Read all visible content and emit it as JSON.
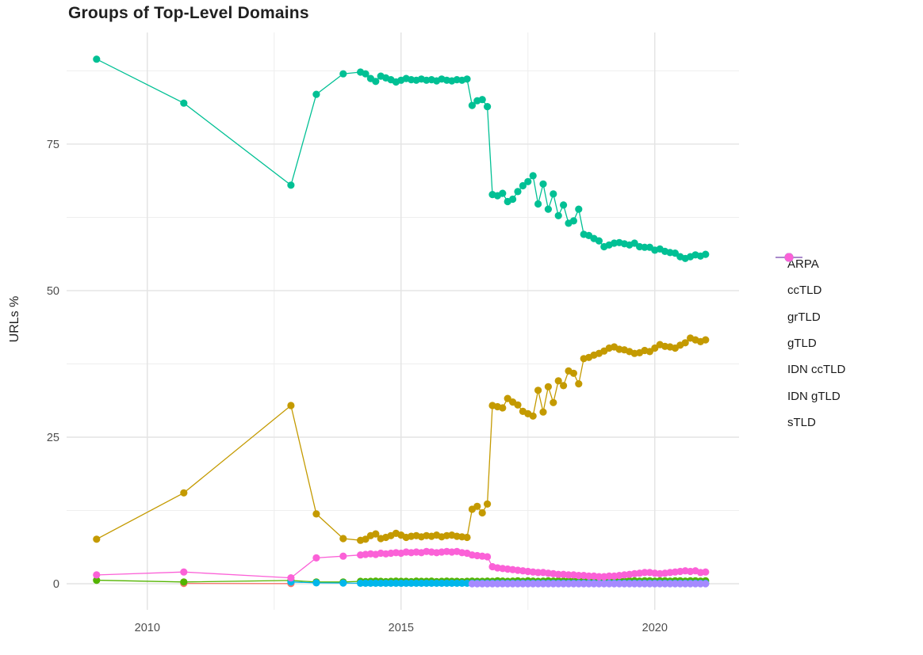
{
  "chart_data": {
    "type": "line",
    "markers": true,
    "title": "Groups of Top-Level Domains",
    "xlabel": "",
    "ylabel": "URLs %",
    "legend_position": "right",
    "grid": true,
    "xlim": [
      2008.41,
      2021.66
    ],
    "ylim": [
      -4.46,
      94.05
    ],
    "x_ticks": [
      {
        "v": 2010,
        "label": "2010"
      },
      {
        "v": 2015,
        "label": "2015"
      },
      {
        "v": 2020,
        "label": "2020"
      }
    ],
    "y_ticks": [
      {
        "v": 0,
        "label": "0"
      },
      {
        "v": 25,
        "label": "25"
      },
      {
        "v": 50,
        "label": "50"
      },
      {
        "v": 75,
        "label": "75"
      }
    ],
    "x_minor": [
      2012.5,
      2017.5
    ],
    "y_minor": [
      12.5,
      37.5,
      62.5,
      87.5
    ],
    "style": {
      "grid_major": "#e3e3e3",
      "grid_minor": "#eeeeee",
      "axis_text_color": "#4d4d4d",
      "text_color": "#1a1a1a",
      "background": "#ffffff"
    },
    "x_dense": [
      2014.2,
      2014.3,
      2014.4,
      2014.5,
      2014.6,
      2014.7,
      2014.8,
      2014.9,
      2015.0,
      2015.1,
      2015.2,
      2015.3,
      2015.4,
      2015.5,
      2015.6,
      2015.7,
      2015.8,
      2015.9,
      2016.0,
      2016.1,
      2016.2,
      2016.3,
      2016.4,
      2016.5,
      2016.6,
      2016.7,
      2016.8,
      2016.9,
      2017.0,
      2017.1,
      2017.2,
      2017.3,
      2017.4,
      2017.5,
      2017.6,
      2017.7,
      2017.8,
      2017.9,
      2018.0,
      2018.1,
      2018.2,
      2018.3,
      2018.4,
      2018.5,
      2018.6,
      2018.7,
      2018.8,
      2018.9,
      2019.0,
      2019.1,
      2019.2,
      2019.3,
      2019.4,
      2019.5,
      2019.6,
      2019.7,
      2019.8,
      2019.9,
      2020.0,
      2020.1,
      2020.2,
      2020.3,
      2020.4,
      2020.5,
      2020.6,
      2020.7,
      2020.8,
      2020.9,
      2021.0
    ],
    "series": [
      {
        "name": "ARPA",
        "color": "#F8766D",
        "early": [
          [
            2010.72,
            0.05
          ],
          [
            2012.83,
            0.02
          ]
        ],
        "dense": []
      },
      {
        "name": "ccTLD",
        "color": "#C49A00",
        "early": [
          [
            2009.0,
            7.6
          ],
          [
            2010.72,
            15.5
          ],
          [
            2012.83,
            30.4
          ],
          [
            2013.33,
            11.9
          ],
          [
            2013.86,
            7.7
          ]
        ],
        "dense": [
          7.4,
          7.6,
          8.2,
          8.5,
          7.7,
          7.9,
          8.2,
          8.6,
          8.3,
          7.9,
          8.1,
          8.2,
          8.0,
          8.2,
          8.1,
          8.3,
          8.0,
          8.2,
          8.3,
          8.1,
          8.0,
          7.9,
          12.7,
          13.2,
          12.1,
          13.6,
          30.4,
          30.2,
          30.0,
          31.6,
          31.0,
          30.5,
          29.4,
          29.0,
          28.6,
          33.0,
          29.3,
          33.6,
          30.9,
          34.6,
          33.8,
          36.3,
          35.9,
          34.1,
          38.4,
          38.6,
          39.0,
          39.3,
          39.7,
          40.2,
          40.4,
          40.0,
          39.9,
          39.6,
          39.3,
          39.4,
          39.8,
          39.6,
          40.2,
          40.8,
          40.5,
          40.4,
          40.2,
          40.7,
          41.1,
          41.9,
          41.6,
          41.3,
          41.6
        ]
      },
      {
        "name": "grTLD",
        "color": "#53B400",
        "early": [
          [
            2009.0,
            0.6
          ],
          [
            2010.72,
            0.3
          ],
          [
            2012.83,
            0.55
          ],
          [
            2013.33,
            0.3
          ],
          [
            2013.86,
            0.3
          ]
        ],
        "dense": [
          0.4,
          0.35,
          0.4,
          0.45,
          0.4,
          0.35,
          0.4,
          0.45,
          0.4,
          0.4,
          0.35,
          0.45,
          0.4,
          0.4,
          0.45,
          0.35,
          0.4,
          0.45,
          0.4,
          0.4,
          0.35,
          0.4,
          0.45,
          0.4,
          0.4,
          0.45,
          0.4,
          0.5,
          0.45,
          0.4,
          0.45,
          0.5,
          0.4,
          0.5,
          0.45,
          0.4,
          0.45,
          0.5,
          0.45,
          0.5,
          0.45,
          0.5,
          0.45,
          0.5,
          0.5,
          0.45,
          0.5,
          0.45,
          0.5,
          0.45,
          0.5,
          0.5,
          0.45,
          0.5,
          0.5,
          0.45,
          0.5,
          0.5,
          0.45,
          0.5,
          0.5,
          0.45,
          0.5,
          0.5,
          0.45,
          0.5,
          0.5,
          0.45,
          0.5
        ]
      },
      {
        "name": "gTLD",
        "color": "#00C094",
        "early": [
          [
            2009.0,
            89.5
          ],
          [
            2010.72,
            82.0
          ],
          [
            2012.83,
            68.0
          ],
          [
            2013.33,
            83.5
          ],
          [
            2013.86,
            87.0
          ]
        ],
        "dense": [
          87.3,
          87.0,
          86.2,
          85.7,
          86.6,
          86.3,
          86.0,
          85.6,
          85.9,
          86.2,
          86.0,
          85.9,
          86.1,
          85.9,
          86.0,
          85.8,
          86.1,
          85.9,
          85.8,
          86.0,
          85.9,
          86.1,
          81.6,
          82.4,
          82.6,
          81.4,
          66.4,
          66.2,
          66.6,
          65.2,
          65.6,
          66.9,
          67.9,
          68.6,
          69.6,
          64.8,
          68.2,
          63.9,
          66.5,
          62.8,
          64.6,
          61.5,
          61.9,
          63.9,
          59.6,
          59.4,
          58.9,
          58.5,
          57.5,
          57.8,
          58.1,
          58.2,
          58.0,
          57.8,
          58.1,
          57.5,
          57.4,
          57.4,
          56.9,
          57.1,
          56.7,
          56.5,
          56.4,
          55.8,
          55.5,
          55.8,
          56.1,
          55.9,
          56.2
        ]
      },
      {
        "name": "IDN ccTLD",
        "color": "#00B6EB",
        "early": [
          [
            2012.83,
            0.3
          ],
          [
            2013.33,
            0.15
          ],
          [
            2013.86,
            0.12
          ]
        ],
        "dense": [
          0.08,
          0.08,
          0.08,
          0.08,
          0.08,
          0.08,
          0.08,
          0.08,
          0.08,
          0.08,
          0.08,
          0.08,
          0.08,
          0.08,
          0.08,
          0.08,
          0.08,
          0.08,
          0.08,
          0.08,
          0.08,
          0.08,
          0.08,
          0.08,
          0.08,
          0.08,
          0.08,
          0.08,
          0.08,
          0.08,
          0.08,
          0.08,
          0.08,
          0.08,
          0.08,
          0.08,
          0.08,
          0.08,
          0.08,
          0.08,
          0.08,
          0.08,
          0.08,
          0.08,
          0.08,
          0.08,
          0.08,
          0.08,
          0.08,
          0.08,
          0.08,
          0.08,
          0.08,
          0.08,
          0.08,
          0.08,
          0.08,
          0.08,
          0.08,
          0.08,
          0.08,
          0.08,
          0.08,
          0.08,
          0.08,
          0.08,
          0.08,
          0.08,
          0.08
        ]
      },
      {
        "name": "IDN gTLD",
        "color": "#A58AFF",
        "early": [],
        "dense_from": 2016.4,
        "dense": [
          0.0,
          0.0,
          0.0,
          0.0,
          0.0,
          0.0,
          0.0,
          0.0,
          0.0,
          0.0,
          0.0,
          0.0,
          0.0,
          0.0,
          0.0,
          0.0,
          0.0,
          0.0,
          0.0,
          0.0,
          0.0,
          0.0,
          0.0,
          0.0,
          0.0,
          0.0,
          0.0,
          0.0,
          0.0,
          0.0,
          0.0,
          0.0,
          0.0,
          0.0,
          0.0,
          0.0,
          0.0,
          0.0,
          0.0,
          0.0,
          0.0,
          0.0,
          0.0,
          0.0,
          0.0,
          0.0,
          0.0
        ]
      },
      {
        "name": "sTLD",
        "color": "#FB61D7",
        "early": [
          [
            2009.0,
            1.5
          ],
          [
            2010.72,
            2.0
          ],
          [
            2012.83,
            1.0
          ],
          [
            2013.33,
            4.4
          ],
          [
            2013.86,
            4.7
          ]
        ],
        "dense": [
          4.9,
          5.0,
          5.1,
          5.0,
          5.2,
          5.1,
          5.2,
          5.3,
          5.2,
          5.4,
          5.3,
          5.4,
          5.3,
          5.5,
          5.4,
          5.3,
          5.4,
          5.5,
          5.4,
          5.5,
          5.3,
          5.2,
          4.9,
          4.8,
          4.7,
          4.6,
          2.9,
          2.7,
          2.6,
          2.5,
          2.4,
          2.3,
          2.2,
          2.1,
          2.0,
          1.9,
          1.9,
          1.8,
          1.7,
          1.6,
          1.6,
          1.5,
          1.5,
          1.4,
          1.4,
          1.3,
          1.3,
          1.2,
          1.2,
          1.3,
          1.3,
          1.4,
          1.5,
          1.6,
          1.7,
          1.8,
          1.9,
          1.9,
          1.8,
          1.7,
          1.8,
          1.9,
          2.0,
          2.1,
          2.2,
          2.1,
          2.2,
          1.9,
          2.0
        ]
      }
    ]
  }
}
